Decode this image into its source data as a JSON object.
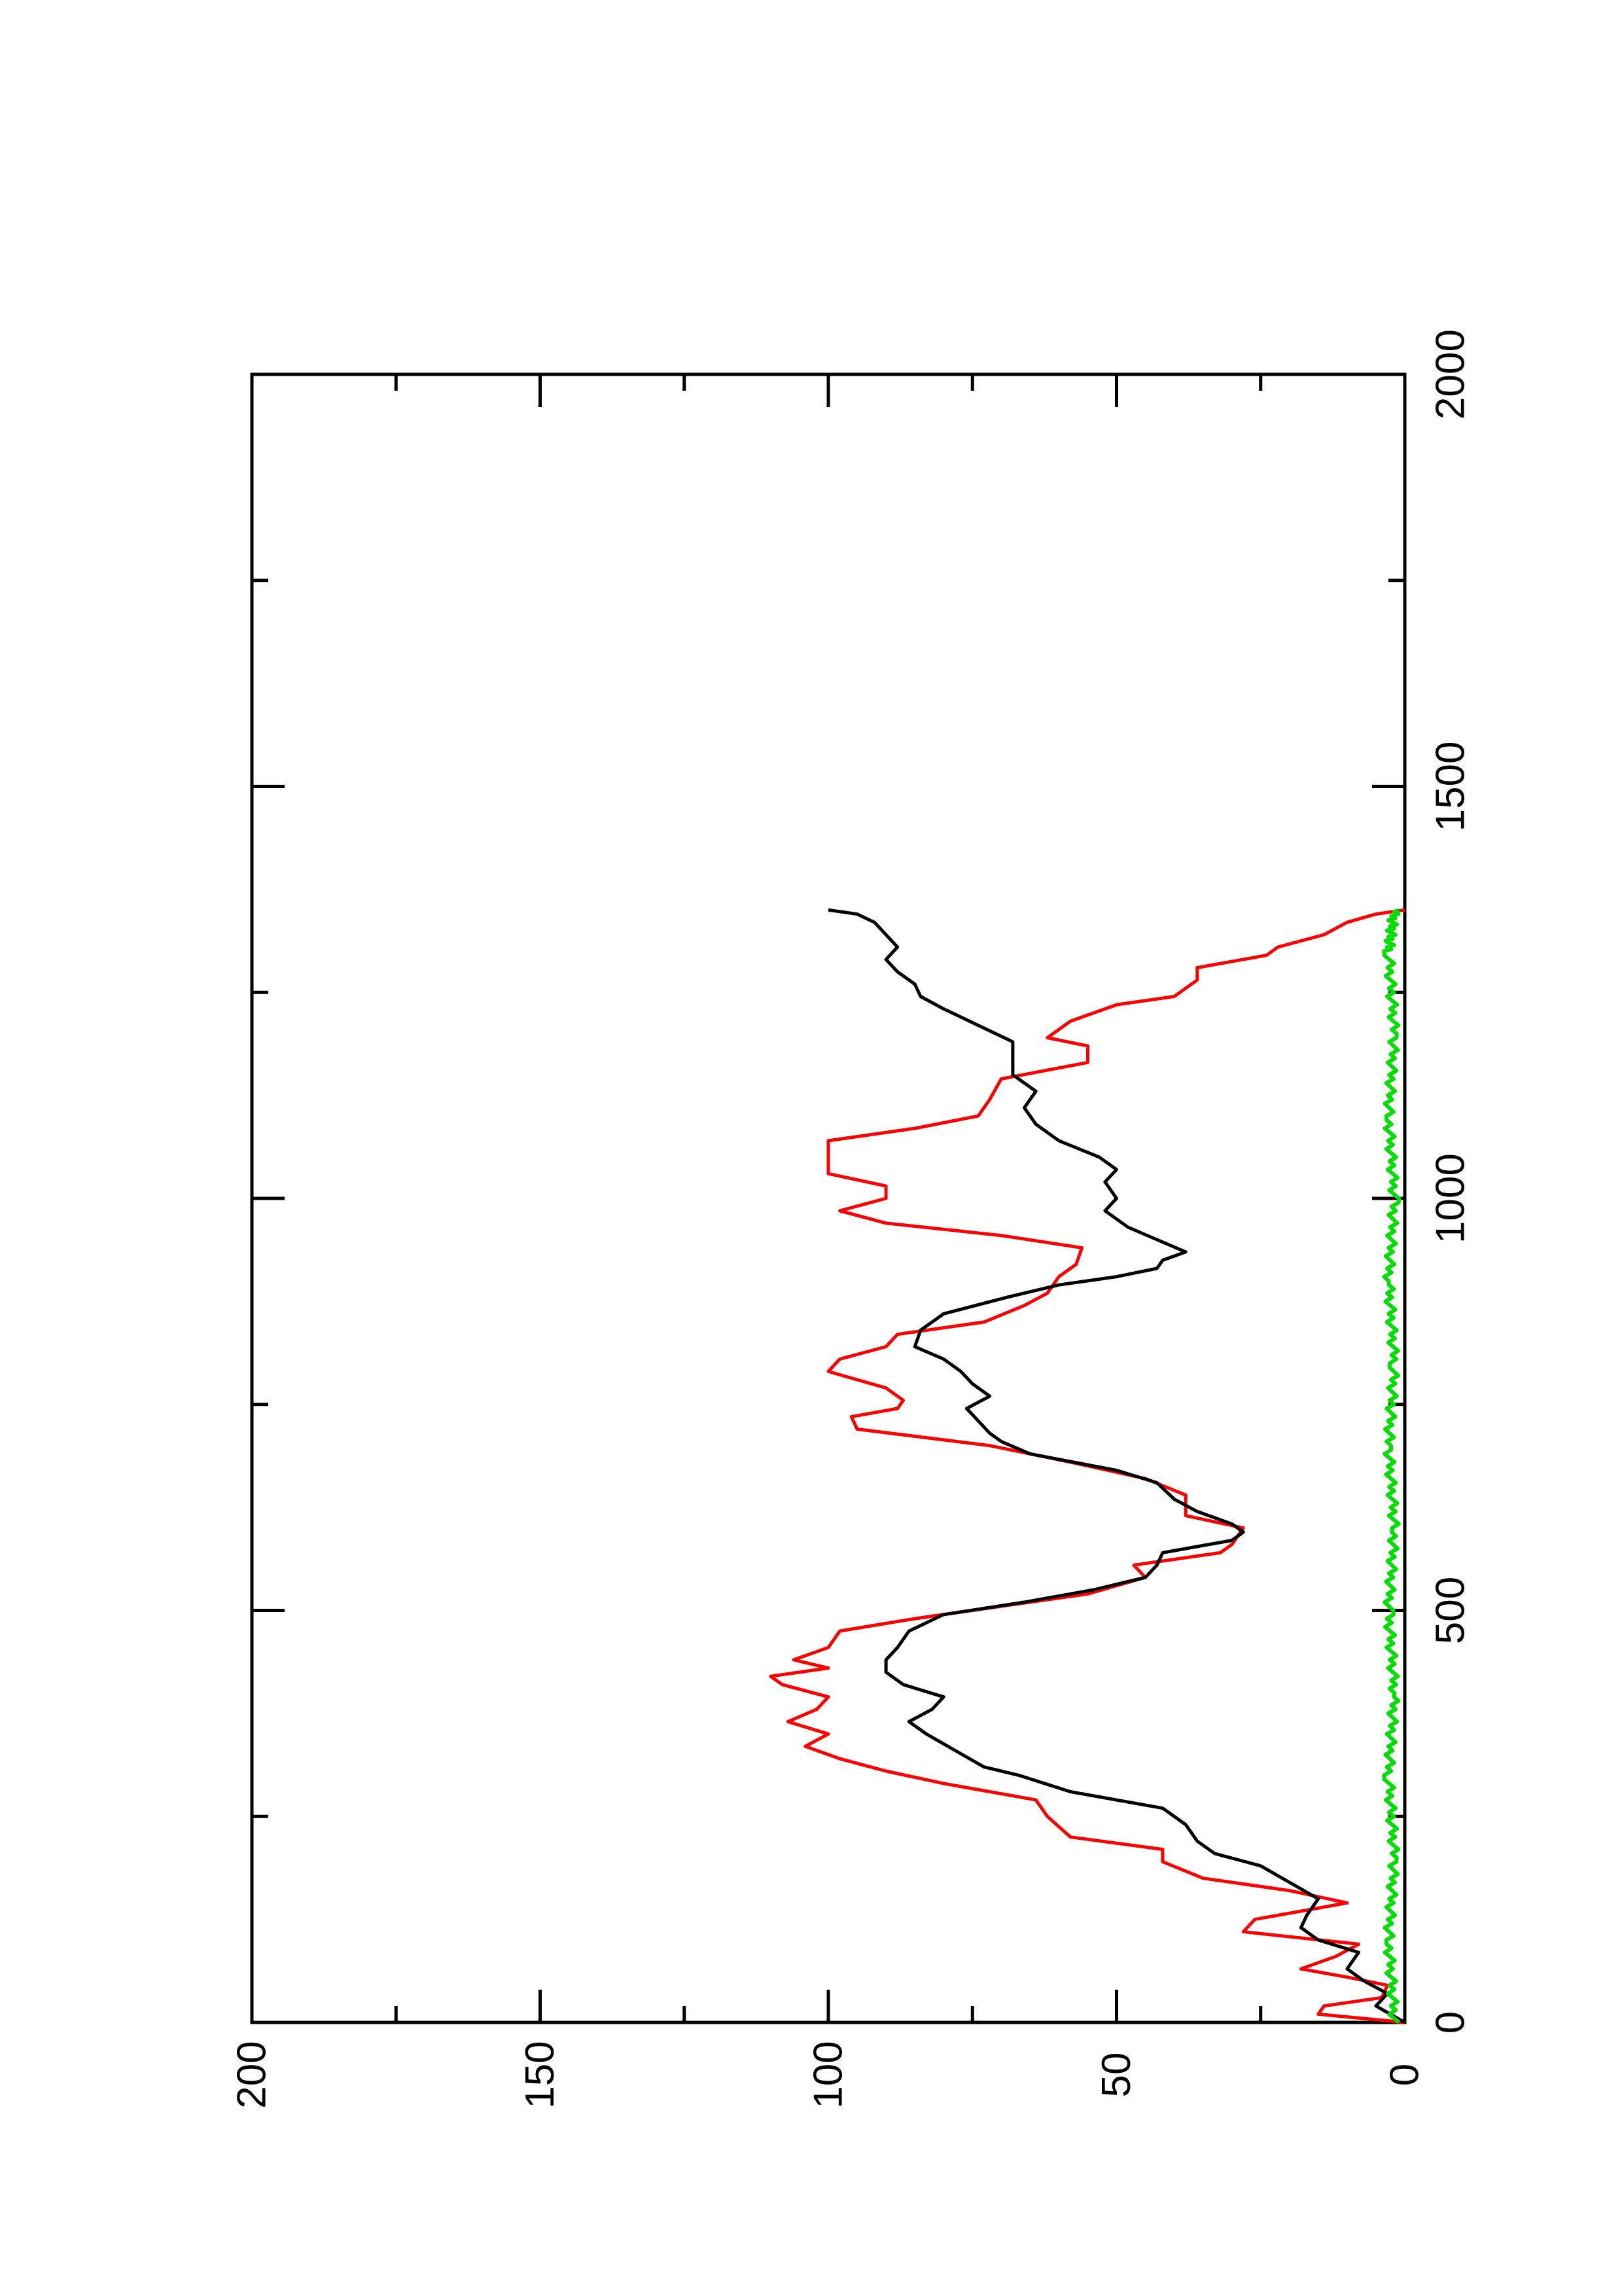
{
  "chart_data": {
    "type": "line",
    "title": "",
    "xlabel": "",
    "ylabel": "",
    "orientation": "rotated-90-ccw",
    "xlim": [
      0,
      2000
    ],
    "ylim": [
      0,
      200
    ],
    "x_ticks": [
      "0",
      "500",
      "1000",
      "1500",
      "2000"
    ],
    "y_ticks": [
      "0",
      "50",
      "100",
      "150",
      "200"
    ],
    "grid": false,
    "legend": "none",
    "series": [
      {
        "color": "#ff0000",
        "points": [
          [
            0,
            0
          ],
          [
            10,
            15
          ],
          [
            20,
            14
          ],
          [
            30,
            4
          ],
          [
            45,
            3
          ],
          [
            55,
            10
          ],
          [
            65,
            18
          ],
          [
            80,
            12
          ],
          [
            95,
            8
          ],
          [
            110,
            28
          ],
          [
            125,
            26
          ],
          [
            145,
            10
          ],
          [
            160,
            20
          ],
          [
            175,
            35
          ],
          [
            195,
            42
          ],
          [
            210,
            42
          ],
          [
            225,
            58
          ],
          [
            250,
            62
          ],
          [
            270,
            64
          ],
          [
            290,
            80
          ],
          [
            305,
            90
          ],
          [
            320,
            98
          ],
          [
            335,
            104
          ],
          [
            350,
            100
          ],
          [
            365,
            107
          ],
          [
            380,
            102
          ],
          [
            395,
            100
          ],
          [
            410,
            108
          ],
          [
            420,
            110
          ],
          [
            430,
            100
          ],
          [
            440,
            106
          ],
          [
            455,
            100
          ],
          [
            475,
            98
          ],
          [
            490,
            85
          ],
          [
            505,
            70
          ],
          [
            520,
            55
          ],
          [
            540,
            45
          ],
          [
            555,
            47
          ],
          [
            570,
            32
          ],
          [
            580,
            30
          ],
          [
            600,
            28
          ],
          [
            615,
            38
          ],
          [
            640,
            38
          ],
          [
            660,
            45
          ],
          [
            680,
            58
          ],
          [
            700,
            72
          ],
          [
            720,
            95
          ],
          [
            735,
            96
          ],
          [
            745,
            88
          ],
          [
            755,
            87
          ],
          [
            770,
            90
          ],
          [
            790,
            100
          ],
          [
            805,
            98
          ],
          [
            820,
            90
          ],
          [
            835,
            88
          ],
          [
            850,
            73
          ],
          [
            870,
            66
          ],
          [
            885,
            62
          ],
          [
            905,
            60
          ],
          [
            920,
            57
          ],
          [
            940,
            56
          ],
          [
            955,
            70
          ],
          [
            970,
            90
          ],
          [
            985,
            98
          ],
          [
            1000,
            90
          ],
          [
            1015,
            90
          ],
          [
            1030,
            100
          ],
          [
            1050,
            100
          ],
          [
            1070,
            100
          ],
          [
            1085,
            85
          ],
          [
            1100,
            74
          ],
          [
            1120,
            72
          ],
          [
            1145,
            70
          ],
          [
            1165,
            55
          ],
          [
            1185,
            55
          ],
          [
            1195,
            62
          ],
          [
            1215,
            58
          ],
          [
            1235,
            50
          ],
          [
            1245,
            40
          ],
          [
            1265,
            36
          ],
          [
            1280,
            36
          ],
          [
            1295,
            24
          ],
          [
            1305,
            22
          ],
          [
            1320,
            14
          ],
          [
            1335,
            10
          ],
          [
            1345,
            5
          ],
          [
            1350,
            0
          ]
        ]
      },
      {
        "color": "#000000",
        "points": [
          [
            0,
            0
          ],
          [
            20,
            5
          ],
          [
            35,
            3
          ],
          [
            50,
            7
          ],
          [
            65,
            10
          ],
          [
            85,
            8
          ],
          [
            100,
            15
          ],
          [
            115,
            18
          ],
          [
            130,
            17
          ],
          [
            150,
            15
          ],
          [
            170,
            20
          ],
          [
            190,
            25
          ],
          [
            205,
            33
          ],
          [
            220,
            36
          ],
          [
            240,
            38
          ],
          [
            260,
            42
          ],
          [
            280,
            58
          ],
          [
            300,
            67
          ],
          [
            310,
            73
          ],
          [
            330,
            78
          ],
          [
            350,
            83
          ],
          [
            365,
            86
          ],
          [
            380,
            82
          ],
          [
            395,
            80
          ],
          [
            410,
            87
          ],
          [
            425,
            90
          ],
          [
            440,
            90
          ],
          [
            455,
            88
          ],
          [
            475,
            86
          ],
          [
            495,
            80
          ],
          [
            510,
            66
          ],
          [
            525,
            54
          ],
          [
            540,
            45
          ],
          [
            555,
            43
          ],
          [
            570,
            42
          ],
          [
            585,
            30
          ],
          [
            595,
            28
          ],
          [
            605,
            30
          ],
          [
            620,
            36
          ],
          [
            635,
            40
          ],
          [
            655,
            43
          ],
          [
            670,
            50
          ],
          [
            690,
            65
          ],
          [
            705,
            70
          ],
          [
            715,
            72
          ],
          [
            730,
            74
          ],
          [
            745,
            76
          ],
          [
            760,
            72
          ],
          [
            775,
            75
          ],
          [
            790,
            77
          ],
          [
            805,
            80
          ],
          [
            820,
            85
          ],
          [
            840,
            84
          ],
          [
            860,
            80
          ],
          [
            880,
            69
          ],
          [
            895,
            60
          ],
          [
            905,
            50
          ],
          [
            915,
            43
          ],
          [
            925,
            42
          ],
          [
            935,
            38
          ],
          [
            950,
            43
          ],
          [
            965,
            48
          ],
          [
            985,
            52
          ],
          [
            1000,
            50
          ],
          [
            1020,
            52
          ],
          [
            1035,
            50
          ],
          [
            1050,
            53
          ],
          [
            1070,
            60
          ],
          [
            1090,
            64
          ],
          [
            1110,
            66
          ],
          [
            1130,
            64
          ],
          [
            1150,
            68
          ],
          [
            1170,
            68
          ],
          [
            1190,
            68
          ],
          [
            1210,
            74
          ],
          [
            1230,
            80
          ],
          [
            1245,
            84
          ],
          [
            1260,
            85
          ],
          [
            1275,
            88
          ],
          [
            1290,
            90
          ],
          [
            1305,
            88
          ],
          [
            1320,
            90
          ],
          [
            1335,
            92
          ],
          [
            1345,
            95
          ],
          [
            1350,
            100
          ]
        ]
      },
      {
        "color": "#00dd00",
        "points": [
          [
            0,
            1
          ],
          [
            100,
            2
          ],
          [
            200,
            1
          ],
          [
            300,
            2
          ],
          [
            400,
            1
          ],
          [
            500,
            2
          ],
          [
            600,
            1
          ],
          [
            700,
            2
          ],
          [
            800,
            1
          ],
          [
            900,
            2
          ],
          [
            1000,
            1
          ],
          [
            1100,
            2
          ],
          [
            1200,
            1
          ],
          [
            1300,
            2
          ],
          [
            1350,
            1
          ]
        ]
      }
    ]
  }
}
